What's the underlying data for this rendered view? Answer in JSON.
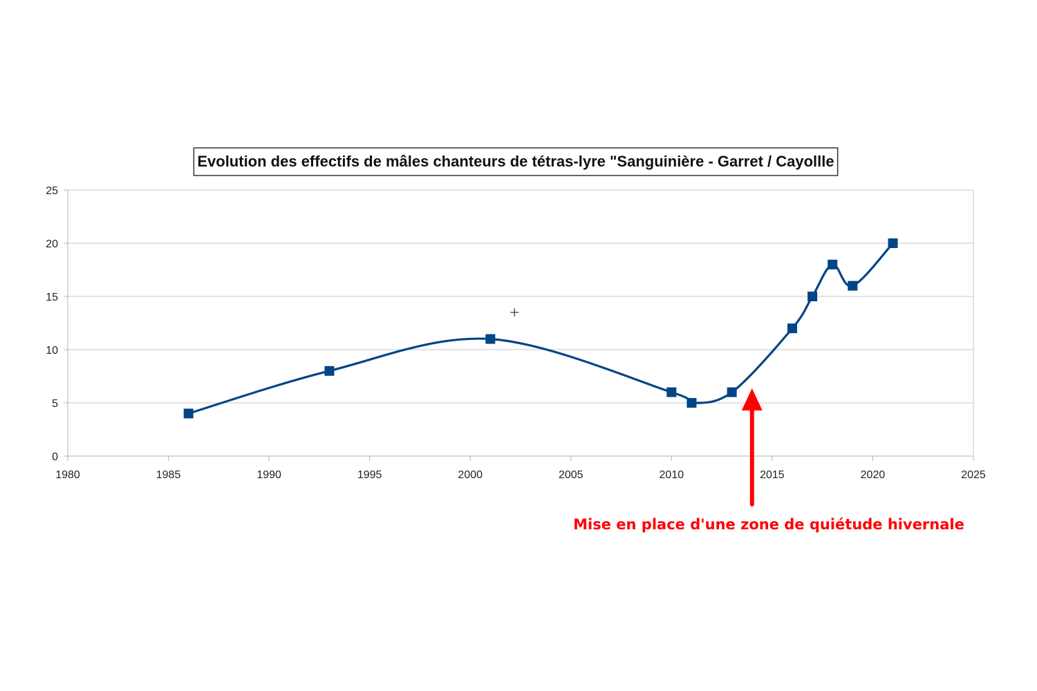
{
  "chart_data": {
    "type": "line",
    "title": "Evolution des effectifs de mâles chanteurs de tétras-lyre  \"Sanguinière - Garret / Cayollle",
    "xlabel": "",
    "ylabel": "",
    "xlim": [
      1980,
      2025
    ],
    "ylim": [
      0,
      25
    ],
    "x_ticks": [
      "1980",
      "1985",
      "1990",
      "1995",
      "2000",
      "2005",
      "2010",
      "2015",
      "2020",
      "2025"
    ],
    "y_ticks": [
      "0",
      "5",
      "10",
      "15",
      "20",
      "25"
    ],
    "grid": "horizontal",
    "smooth": true,
    "series": [
      {
        "x": [
          1986,
          1993,
          2001,
          2010,
          2011,
          2013,
          2016,
          2017,
          2018,
          2019,
          2021
        ],
        "values": [
          4,
          8,
          11,
          6,
          5,
          6,
          12,
          15,
          18,
          16,
          20
        ],
        "color": "#004586",
        "marker": "square"
      }
    ],
    "stray_mark": {
      "x": 2002.2,
      "y": 13.5
    },
    "annotation": {
      "text": "Mise en place d'une zone de quiétude hivernale",
      "x": 2014,
      "color": "#ff0000",
      "arrow": "up"
    }
  }
}
